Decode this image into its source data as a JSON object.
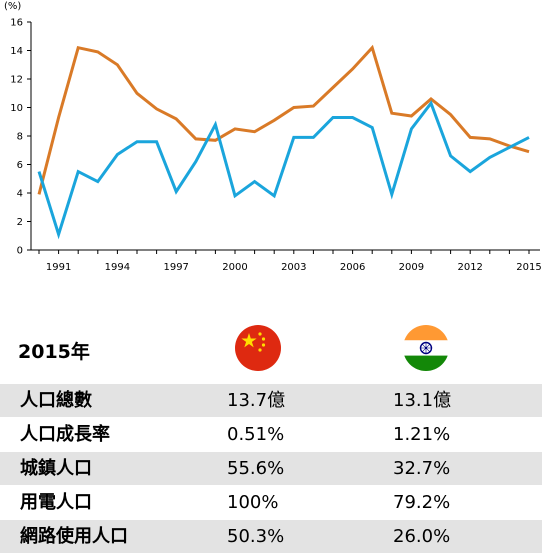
{
  "chart_data": {
    "type": "line",
    "ylabel": "(%)",
    "ylim": [
      0,
      16
    ],
    "yticks": [
      0,
      2,
      4,
      6,
      8,
      10,
      12,
      14,
      16
    ],
    "xticks": [
      "1991",
      "1994",
      "1997",
      "2000",
      "2003",
      "2006",
      "2009",
      "2012",
      "2015"
    ],
    "x": [
      1990,
      1991,
      1992,
      1993,
      1994,
      1995,
      1996,
      1997,
      1998,
      1999,
      2000,
      2001,
      2002,
      2003,
      2004,
      2005,
      2006,
      2007,
      2008,
      2009,
      2010,
      2011,
      2012,
      2013,
      2014,
      2015
    ],
    "series": [
      {
        "color": "#d97a27",
        "values": [
          3.9,
          9.3,
          14.2,
          13.9,
          13.0,
          11.0,
          9.9,
          9.2,
          7.8,
          7.7,
          8.5,
          8.3,
          9.1,
          10.0,
          10.1,
          11.4,
          12.7,
          14.2,
          9.6,
          9.4,
          10.6,
          9.5,
          7.9,
          7.8,
          7.3,
          6.9
        ]
      },
      {
        "color": "#1aa5dc",
        "values": [
          5.5,
          1.1,
          5.5,
          4.8,
          6.7,
          7.6,
          7.6,
          4.1,
          6.2,
          8.8,
          3.8,
          4.8,
          3.8,
          7.9,
          7.9,
          9.3,
          9.3,
          8.6,
          3.9,
          8.5,
          10.3,
          6.6,
          5.5,
          6.5,
          7.2,
          7.9
        ]
      }
    ]
  },
  "table": {
    "year": "2015年",
    "flags": {
      "cn": "china-flag",
      "in": "india-flag"
    },
    "rows": [
      {
        "label": "人口總數",
        "cn": "13.7億",
        "in": "13.1億"
      },
      {
        "label": "人口成長率",
        "cn": "0.51%",
        "in": "1.21%"
      },
      {
        "label": "城鎮人口",
        "cn": "55.6%",
        "in": "32.7%"
      },
      {
        "label": "用電人口",
        "cn": "100%",
        "in": "79.2%"
      },
      {
        "label": "網路使用人口",
        "cn": "50.3%",
        "in": "26.0%"
      }
    ]
  },
  "colors": {
    "row_shade": "#e3e3e3",
    "china_red": "#de2910",
    "china_star": "#ffde00",
    "india_saffron": "#ff9933",
    "india_green": "#138808",
    "india_navy": "#000080"
  }
}
